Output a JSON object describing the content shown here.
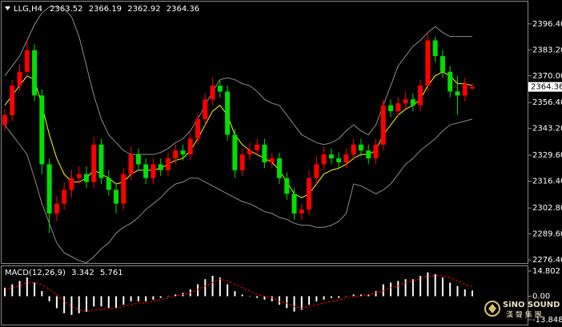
{
  "chart_data": [
    {
      "type": "candlestick",
      "title": "LLG,H4",
      "open": [
        2345,
        2350,
        2365,
        2372,
        2383,
        2360,
        2325,
        2300,
        2305,
        2312,
        2318,
        2320,
        2316,
        2335,
        2318,
        2312,
        2305,
        2320,
        2330,
        2325,
        2318,
        2325,
        2322,
        2328,
        2332,
        2330,
        2338,
        2348,
        2358,
        2365,
        2362,
        2340,
        2322,
        2330,
        2332,
        2335,
        2326,
        2328,
        2318,
        2310,
        2300,
        2302,
        2318,
        2325,
        2330,
        2328,
        2326,
        2330,
        2335,
        2332,
        2328,
        2335,
        2355,
        2352,
        2356,
        2358,
        2355,
        2365,
        2388,
        2380,
        2372,
        2362,
        2360,
        2363.52
      ],
      "high": [
        2353,
        2368,
        2376,
        2388,
        2386,
        2363,
        2328,
        2309,
        2316,
        2322,
        2324,
        2324,
        2339,
        2338,
        2322,
        2315,
        2323,
        2334,
        2333,
        2328,
        2328,
        2328,
        2331,
        2335,
        2335,
        2341,
        2351,
        2361,
        2369,
        2368,
        2365,
        2343,
        2333,
        2336,
        2338,
        2338,
        2331,
        2331,
        2321,
        2313,
        2305,
        2322,
        2329,
        2334,
        2333,
        2331,
        2333,
        2338,
        2338,
        2335,
        2338,
        2358,
        2358,
        2359,
        2362,
        2361,
        2368,
        2392,
        2390,
        2383,
        2375,
        2370,
        2369,
        2366.19
      ],
      "low": [
        2342,
        2347,
        2362,
        2369,
        2357,
        2320,
        2290,
        2296,
        2302,
        2308,
        2315,
        2313,
        2313,
        2315,
        2309,
        2300,
        2302,
        2317,
        2322,
        2315,
        2315,
        2319,
        2319,
        2325,
        2327,
        2327,
        2335,
        2345,
        2355,
        2359,
        2337,
        2318,
        2319,
        2327,
        2329,
        2323,
        2323,
        2315,
        2307,
        2297,
        2297,
        2299,
        2315,
        2322,
        2325,
        2323,
        2323,
        2327,
        2329,
        2325,
        2325,
        2332,
        2349,
        2349,
        2353,
        2352,
        2352,
        2362,
        2377,
        2369,
        2359,
        2350,
        2357,
        2362.92
      ],
      "close": [
        2350,
        2365,
        2372,
        2383,
        2360,
        2325,
        2300,
        2305,
        2312,
        2318,
        2320,
        2316,
        2335,
        2318,
        2312,
        2305,
        2320,
        2330,
        2325,
        2318,
        2325,
        2322,
        2328,
        2332,
        2330,
        2338,
        2348,
        2358,
        2365,
        2362,
        2340,
        2322,
        2330,
        2332,
        2335,
        2326,
        2328,
        2318,
        2310,
        2300,
        2302,
        2318,
        2325,
        2330,
        2328,
        2326,
        2330,
        2335,
        2332,
        2328,
        2335,
        2355,
        2352,
        2356,
        2358,
        2355,
        2365,
        2388,
        2380,
        2372,
        2362,
        2360,
        2366,
        2364.36
      ],
      "up_color": "#ff0000",
      "down_color": "#00e000",
      "series": [
        {
          "color": "#8c8c8c",
          "values": [
            2370,
            2375,
            2380,
            2388,
            2396,
            2402,
            2405,
            2405,
            2404,
            2400,
            2390,
            2375,
            2360,
            2348,
            2340,
            2336,
            2332,
            2330,
            2330,
            2330,
            2330,
            2331,
            2333,
            2336,
            2338,
            2342,
            2348,
            2355,
            2362,
            2368,
            2369,
            2368,
            2366,
            2365,
            2362,
            2358,
            2356,
            2355,
            2350,
            2345,
            2340,
            2338,
            2336,
            2335,
            2336,
            2338,
            2342,
            2345,
            2342,
            2340,
            2345,
            2355,
            2365,
            2375,
            2380,
            2385,
            2388,
            2392,
            2395,
            2392,
            2390,
            2390,
            2390,
            2390
          ]
        },
        {
          "color": "#8c8c8c",
          "values": [
            2345,
            2340,
            2335,
            2330,
            2318,
            2305,
            2295,
            2285,
            2280,
            2278,
            2276,
            2275,
            2278,
            2282,
            2285,
            2290,
            2293,
            2295,
            2298,
            2302,
            2305,
            2308,
            2312,
            2315,
            2316,
            2318,
            2318,
            2316,
            2314,
            2312,
            2310,
            2308,
            2306,
            2305,
            2303,
            2301,
            2300,
            2298,
            2297,
            2295,
            2294,
            2294,
            2293,
            2293,
            2294,
            2296,
            2300,
            2315,
            2314,
            2312,
            2310,
            2312,
            2315,
            2320,
            2325,
            2328,
            2332,
            2335,
            2338,
            2342,
            2345,
            2346,
            2347,
            2348
          ]
        },
        {
          "color": "#ffff00",
          "values": [
            2355,
            2360,
            2365,
            2370,
            2368,
            2355,
            2340,
            2328,
            2320,
            2316,
            2316,
            2318,
            2322,
            2320,
            2318,
            2315,
            2316,
            2320,
            2322,
            2322,
            2322,
            2323,
            2325,
            2327,
            2328,
            2332,
            2338,
            2345,
            2352,
            2355,
            2350,
            2340,
            2335,
            2332,
            2330,
            2328,
            2326,
            2322,
            2316,
            2310,
            2308,
            2310,
            2315,
            2320,
            2322,
            2323,
            2325,
            2328,
            2330,
            2330,
            2332,
            2340,
            2345,
            2350,
            2353,
            2355,
            2358,
            2365,
            2370,
            2372,
            2370,
            2366,
            2366,
            2365
          ]
        }
      ],
      "ylim": [
        2274.8,
        2407.3
      ],
      "yticks": [
        {
          "value": 2396.4,
          "label": "2396.40"
        },
        {
          "value": 2383.2,
          "label": "2383.20"
        },
        {
          "value": 2370,
          "label": "2370.00"
        },
        {
          "value": 2356.4,
          "label": "2356.40"
        },
        {
          "value": 2343.2,
          "label": "2343.20"
        },
        {
          "value": 2329.6,
          "label": "2329.60"
        },
        {
          "value": 2316.4,
          "label": "2316.40"
        },
        {
          "value": 2302.8,
          "label": "2302.80"
        },
        {
          "value": 2289.6,
          "label": "2289.60"
        },
        {
          "value": 2276.4,
          "label": "2276.40"
        }
      ],
      "current_price": 2364.36
    },
    {
      "type": "macd",
      "title": "MACD(12,26,9)",
      "series": [
        {
          "color": "#ffffff",
          "values": [
            5,
            7,
            9,
            11,
            8,
            3,
            -3,
            -7,
            -10,
            -11,
            -10,
            -9,
            -6,
            -6,
            -7,
            -7,
            -5,
            -3,
            -3,
            -3,
            -2,
            -1,
            0,
            1,
            2,
            4,
            7,
            10,
            12,
            11,
            7,
            3,
            1,
            0,
            -1,
            -2,
            -3,
            -5,
            -7,
            -9,
            -8,
            -5,
            -3,
            -2,
            -1,
            -1,
            0,
            1,
            1,
            1,
            3,
            7,
            8,
            9,
            10,
            10,
            12,
            14,
            13,
            11,
            8,
            6,
            4,
            3.342
          ]
        },
        {
          "color": "#ff0000",
          "values": [
            4,
            5,
            6,
            8,
            8,
            7,
            4,
            1,
            -3,
            -6,
            -8,
            -9,
            -8,
            -8,
            -7,
            -7,
            -6,
            -5,
            -4,
            -4,
            -3,
            -2,
            -1,
            0,
            1,
            2,
            4,
            6,
            8,
            10,
            9,
            7,
            5,
            3,
            1,
            0,
            -1,
            -3,
            -4,
            -6,
            -7,
            -6,
            -5,
            -4,
            -3,
            -2,
            -1,
            0,
            0,
            1,
            2,
            3,
            5,
            6,
            8,
            9,
            10,
            12,
            12,
            12,
            11,
            9,
            7,
            5.761
          ]
        }
      ],
      "ylim": [
        -16.2,
        17.15
      ],
      "yticks": [
        14.802,
        {
          "value": 0,
          "label": "0.00"
        },
        -13.848
      ]
    }
  ],
  "watermark": {
    "brand": "SiNO SOUND",
    "subtitle": "漢 聲 集 團"
  }
}
